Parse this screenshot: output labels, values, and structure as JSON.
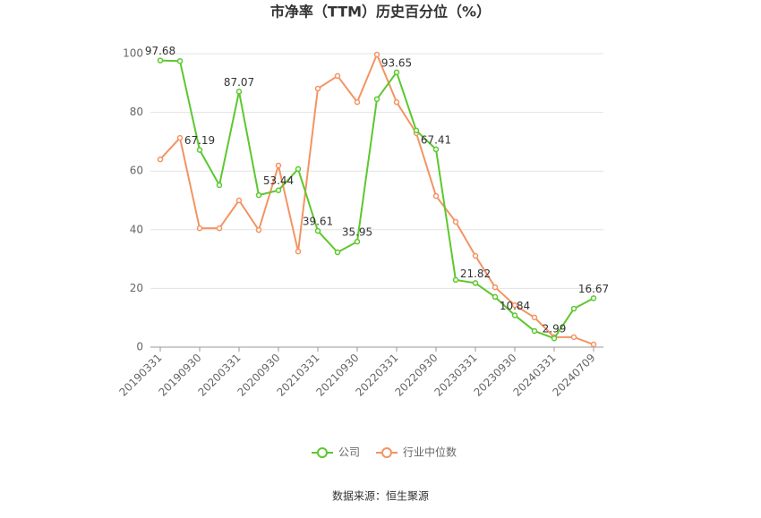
{
  "chart_data": {
    "type": "line",
    "title": "市净率（TTM）历史百分位（%）",
    "categories": [
      "20190331",
      null,
      "20190930",
      null,
      "20200331",
      null,
      "20200930",
      null,
      "20210331",
      null,
      "20210930",
      null,
      "20220331",
      null,
      "20220930",
      null,
      "20230331",
      null,
      "20230930",
      null,
      "20240331",
      null,
      "20240709"
    ],
    "series": [
      {
        "name": "公司",
        "color": "#5cc82e",
        "values": [
          97.68,
          97.5,
          67.19,
          55.2,
          87.07,
          51.8,
          53.44,
          60.7,
          39.61,
          32.3,
          35.95,
          84.5,
          93.65,
          73.8,
          67.41,
          22.9,
          21.82,
          17.1,
          10.84,
          5.5,
          2.99,
          13.1,
          16.67
        ],
        "value_labels": [
          "97.68",
          null,
          "67.19",
          null,
          "87.07",
          null,
          "53.44",
          null,
          "39.61",
          null,
          "35.95",
          null,
          "93.65",
          null,
          "67.41",
          null,
          "21.82",
          null,
          "10.84",
          null,
          "2.99",
          null,
          "16.67"
        ]
      },
      {
        "name": "行业中位数",
        "color": "#f39463",
        "values": [
          64.0,
          71.3,
          40.5,
          40.5,
          50.0,
          39.9,
          61.9,
          32.6,
          88.1,
          92.4,
          83.5,
          99.7,
          83.5,
          72.9,
          51.5,
          42.7,
          31.1,
          20.4,
          14.3,
          10.1,
          3.4,
          3.4,
          0.9
        ]
      }
    ],
    "ylim": [
      0,
      100
    ],
    "yticks": [
      0,
      20,
      40,
      60,
      80,
      100
    ],
    "grid": true,
    "legend": "bottom",
    "source": "数据来源：恒生聚源"
  }
}
